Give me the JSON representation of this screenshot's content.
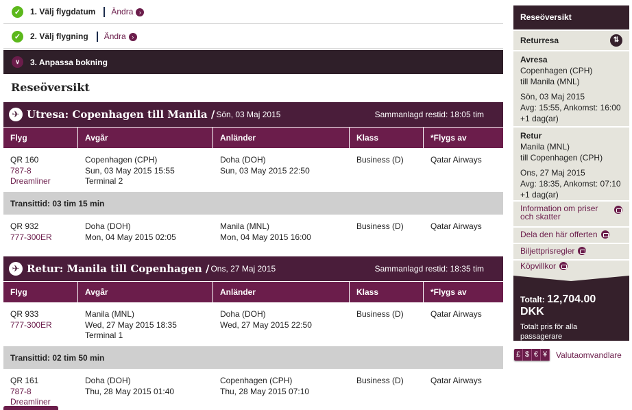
{
  "steps": [
    {
      "label": "1. Välj flygdatum",
      "change": "Ändra"
    },
    {
      "label": "2. Välj flygning",
      "change": "Ändra"
    },
    {
      "label": "3. Anpassa bokning"
    }
  ],
  "page_title": "Reseöversikt",
  "columns": [
    "Flyg",
    "Avgår",
    "Anländer",
    "Klass",
    "*Flygs av"
  ],
  "segments": [
    {
      "route": "Utresa: Copenhagen  till Manila /",
      "date": "Sön, 03 Maj 2015",
      "total": "Sammanlagd restid: 18:05 tim",
      "flights": [
        {
          "no": "QR 160",
          "plane": "787-8 Dreamliner",
          "dep": [
            "Copenhagen (CPH)",
            "Sun, 03 May 2015 15:55",
            "Terminal 2"
          ],
          "arr": [
            "Doha (DOH)",
            "Sun, 03 May 2015 22:50"
          ],
          "class": "Business (D)",
          "by": "Qatar Airways"
        },
        {
          "no": "QR 932",
          "plane": "777-300ER",
          "dep": [
            "Doha (DOH)",
            "Mon, 04 May 2015 02:05"
          ],
          "arr": [
            "Manila (MNL)",
            "Mon, 04 May 2015 16:00"
          ],
          "class": "Business (D)",
          "by": "Qatar Airways"
        }
      ],
      "transit": "Transittid: 03 tim 15 min"
    },
    {
      "route": "Retur: Manila  till Copenhagen /",
      "date": "Ons, 27 Maj 2015",
      "total": "Sammanlagd restid: 18:35 tim",
      "flights": [
        {
          "no": "QR 933",
          "plane": "777-300ER",
          "dep": [
            "Manila (MNL)",
            "Wed, 27 May 2015 18:35",
            "Terminal 1"
          ],
          "arr": [
            "Doha (DOH)",
            "Wed, 27 May 2015 22:50"
          ],
          "class": "Business (D)",
          "by": "Qatar Airways"
        },
        {
          "no": "QR 161",
          "plane": "787-8 Dreamliner",
          "dep": [
            "Doha (DOH)",
            "Thu, 28 May 2015 01:40"
          ],
          "arr": [
            "Copenhagen (CPH)",
            "Thu, 28 May 2015 07:10"
          ],
          "class": "Business (D)",
          "by": "Qatar Airways"
        }
      ],
      "transit": "Transittid: 02 tim 50 min"
    }
  ],
  "sidebar": {
    "title": "Reseöversikt",
    "trip_type": "Returresa",
    "outbound": {
      "heading": "Avresa",
      "from": "Copenhagen (CPH)",
      "to": "till Manila (MNL)",
      "date": "Sön, 03 Maj 2015",
      "times": "Avg: 15:55, Ankomst: 16:00",
      "plus": "+1 dag(ar)"
    },
    "inbound": {
      "heading": "Retur",
      "from": "Manila (MNL)",
      "to": "till Copenhagen (CPH)",
      "date": "Ons, 27 Maj 2015",
      "times": "Avg: 18:35, Ankomst: 07:10",
      "plus": "+1 dag(ar)"
    },
    "links": [
      "Information om priser och skatter",
      "Dela den här offerten",
      "Biljettprisregler",
      "Köpvillkor"
    ],
    "total_label": "Totalt:",
    "total_value": "12,704.00 DKK",
    "total_note": "Totalt pris för alla passagerare",
    "currency_symbols": [
      "£",
      "$",
      "€",
      "¥"
    ],
    "currency_label": "Valutaomvandlare"
  },
  "colors": {
    "brand": "#6b1d4b",
    "dark": "#35202b",
    "check": "#5cb81c"
  }
}
